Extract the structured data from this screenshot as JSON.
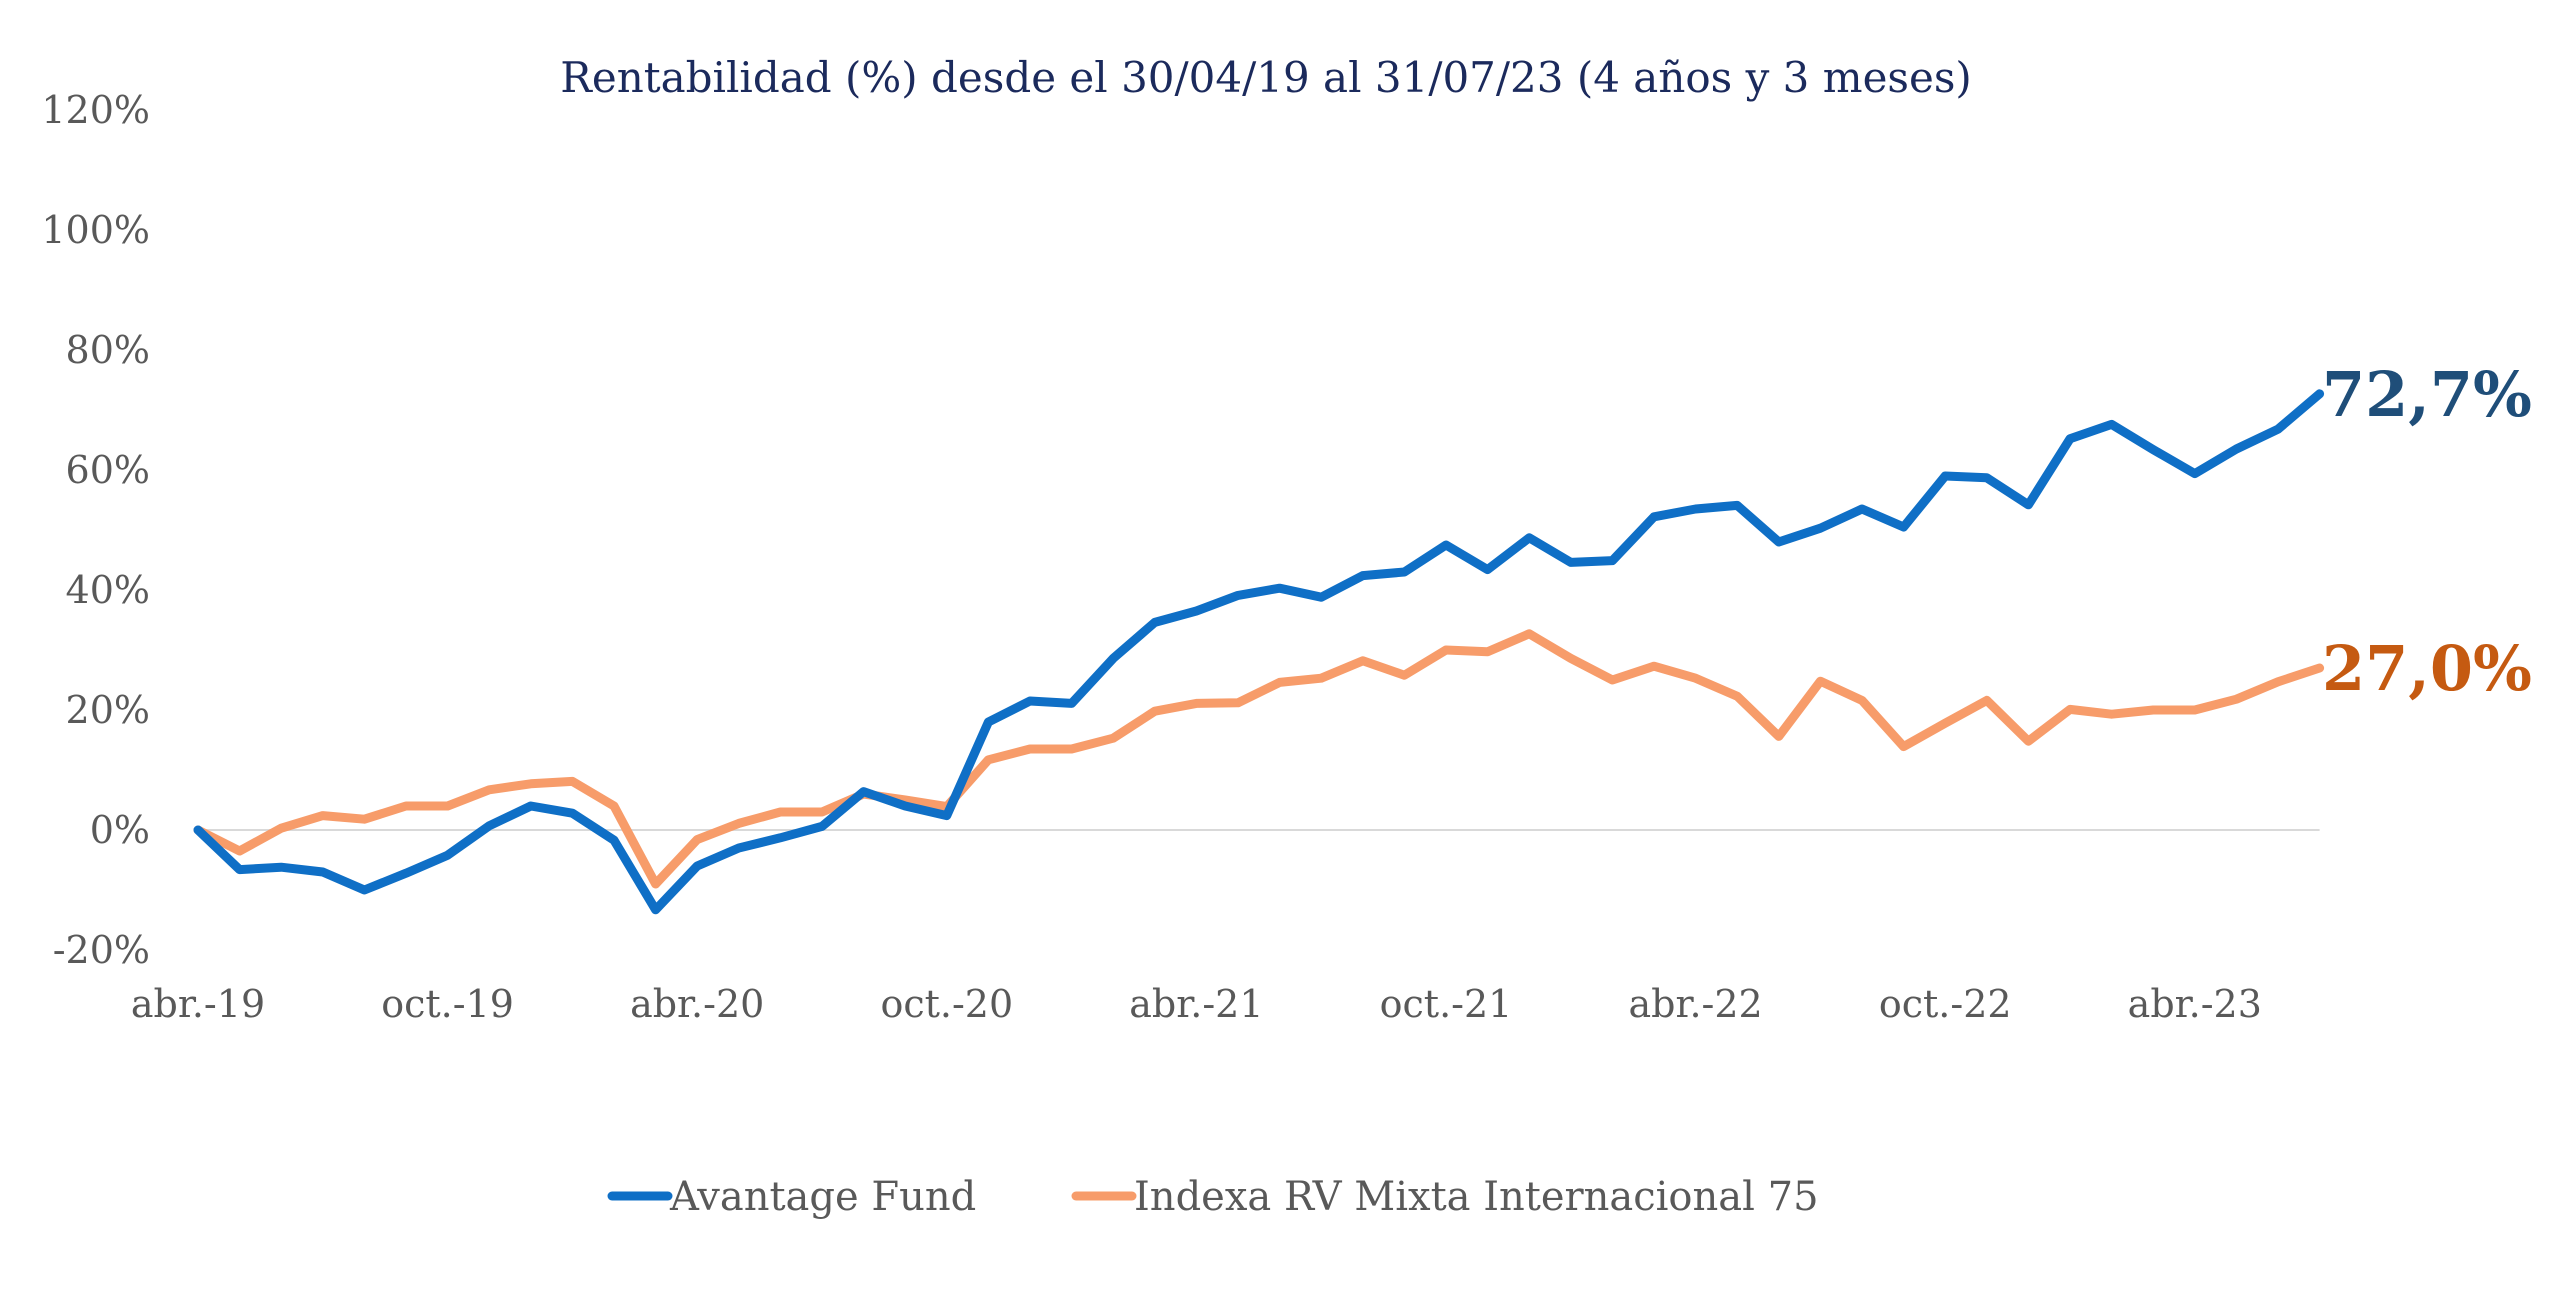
{
  "chart_data": {
    "type": "line",
    "title": "Rentabilidad (%) desde el 30/04/19 al 31/07/23 (4 años y 3 meses)",
    "xlabel": "",
    "ylabel": "",
    "ylim": [
      -20,
      120
    ],
    "yticks": [
      -20,
      0,
      20,
      40,
      60,
      80,
      100,
      120
    ],
    "ytick_labels": [
      "-20%",
      "0%",
      "20%",
      "40%",
      "60%",
      "80%",
      "100%",
      "120%"
    ],
    "x_tick_labels": [
      "abr.-19",
      "oct.-19",
      "abr.-20",
      "oct.-20",
      "abr.-21",
      "oct.-21",
      "abr.-22",
      "oct.-22",
      "abr.-23"
    ],
    "x_tick_month_index": [
      0,
      6,
      12,
      18,
      24,
      30,
      36,
      42,
      48
    ],
    "grid": false,
    "zero_line": true,
    "legend_position": "bottom",
    "series": [
      {
        "name": "Avantage Fund",
        "color": "#0f6fc6",
        "end_label": "72,7%",
        "end_label_color": "#1f4e79",
        "values": [
          0,
          -6.6,
          -6.2,
          -7,
          -10,
          -7.2,
          -4.2,
          0.7,
          4,
          2.8,
          -1.7,
          -13.3,
          -6,
          -3,
          -1.3,
          0.6,
          6.4,
          4,
          2.4,
          18,
          21.5,
          21.1,
          28.6,
          34.6,
          36.5,
          39.1,
          40.3,
          38.8,
          42.4,
          43,
          47.5,
          43.4,
          48.7,
          44.6,
          44.9,
          52.2,
          53.5,
          54.1,
          48,
          50.3,
          53.5,
          50.5,
          59,
          58.7,
          54.2,
          65.2,
          67.6,
          63.4,
          59.4,
          63.5,
          66.8,
          72.7
        ]
      },
      {
        "name": "Indexa RV Mixta Internacional 75",
        "color": "#f79c6a",
        "end_label": "27,0%",
        "end_label_color": "#c55a11",
        "values": [
          0,
          -3.5,
          0.3,
          2.4,
          1.8,
          4,
          4,
          6.7,
          7.7,
          8.1,
          4,
          -9,
          -1.6,
          1.1,
          3,
          3,
          6,
          5,
          3.9,
          11.7,
          13.5,
          13.5,
          15.3,
          19.8,
          21.1,
          21.2,
          24.6,
          25.3,
          28.2,
          25.8,
          30,
          29.7,
          32.7,
          28.6,
          25,
          27.3,
          25.3,
          22.3,
          15.6,
          24.8,
          21.6,
          13.9,
          17.8,
          21.6,
          14.8,
          20.1,
          19.3,
          20,
          20,
          21.8,
          24.7,
          27
        ]
      }
    ]
  }
}
